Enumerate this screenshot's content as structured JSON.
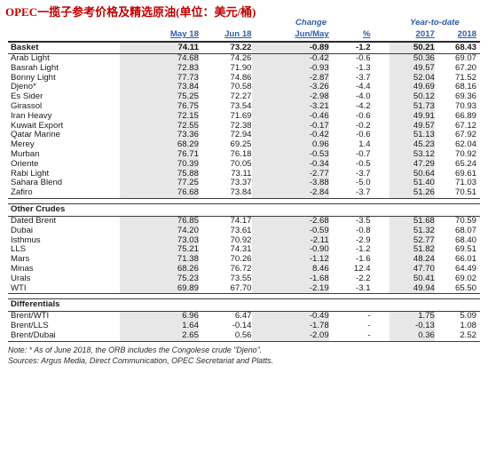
{
  "title": "OPEC一揽子参考价格及精选原油(单位：美元/桶)",
  "header": {
    "change": "Change",
    "ytd": "Year-to-date",
    "may18": "May 18",
    "jun18": "Jun 18",
    "junmay": "Jun/May",
    "pct": "%",
    "y2017": "2017",
    "y2018": "2018"
  },
  "basket": {
    "row": [
      "Basket",
      "74.11",
      "73.22",
      "-0.89",
      "-1.2",
      "50.21",
      "68.43"
    ],
    "rows": [
      [
        "Arab Light",
        "74.68",
        "74.26",
        "-0.42",
        "-0.6",
        "50.36",
        "69.07"
      ],
      [
        "Basrah Light",
        "72.83",
        "71.90",
        "-0.93",
        "-1.3",
        "49.57",
        "67.20"
      ],
      [
        "Bonny Light",
        "77.73",
        "74.86",
        "-2.87",
        "-3.7",
        "52.04",
        "71.52"
      ],
      [
        "Djeno*",
        "73.84",
        "70.58",
        "-3.26",
        "-4.4",
        "49.69",
        "68.16"
      ],
      [
        "Es Sider",
        "75.25",
        "72.27",
        "-2.98",
        "-4.0",
        "50.12",
        "69.36"
      ],
      [
        "Girassol",
        "76.75",
        "73.54",
        "-3.21",
        "-4.2",
        "51.73",
        "70.93"
      ],
      [
        "Iran Heavy",
        "72.15",
        "71.69",
        "-0.46",
        "-0.6",
        "49.91",
        "66.89"
      ],
      [
        "Kuwait Export",
        "72.55",
        "72.38",
        "-0.17",
        "-0.2",
        "49.57",
        "67.12"
      ],
      [
        "Qatar Marine",
        "73.36",
        "72.94",
        "-0.42",
        "-0.6",
        "51.13",
        "67.92"
      ],
      [
        "Merey",
        "68.29",
        "69.25",
        "0.96",
        "1.4",
        "45.23",
        "62.04"
      ],
      [
        "Murban",
        "76.71",
        "76.18",
        "-0.53",
        "-0.7",
        "53.12",
        "70.92"
      ],
      [
        "Oriente",
        "70.39",
        "70.05",
        "-0.34",
        "-0.5",
        "47.29",
        "65.24"
      ],
      [
        "Rabi Light",
        "75.88",
        "73.11",
        "-2.77",
        "-3.7",
        "50.64",
        "69.61"
      ],
      [
        "Sahara Blend",
        "77.25",
        "73.37",
        "-3.88",
        "-5.0",
        "51.40",
        "71.03"
      ],
      [
        "Zafiro",
        "76.68",
        "73.84",
        "-2.84",
        "-3.7",
        "51.26",
        "70.51"
      ]
    ]
  },
  "other": {
    "heading": "Other Crudes",
    "rows": [
      [
        "Dated Brent",
        "76.85",
        "74.17",
        "-2.68",
        "-3.5",
        "51.68",
        "70.59"
      ],
      [
        "Dubai",
        "74.20",
        "73.61",
        "-0.59",
        "-0.8",
        "51.32",
        "68.07"
      ],
      [
        "Isthmus",
        "73.03",
        "70.92",
        "-2.11",
        "-2.9",
        "52.77",
        "68.40"
      ],
      [
        "LLS",
        "75.21",
        "74.31",
        "-0.90",
        "-1.2",
        "51.82",
        "69.51"
      ],
      [
        "Mars",
        "71.38",
        "70.26",
        "-1.12",
        "-1.6",
        "48.24",
        "66.01"
      ],
      [
        "Minas",
        "68.26",
        "76.72",
        "8.46",
        "12.4",
        "47.70",
        "64.49"
      ],
      [
        "Urals",
        "75.23",
        "73.55",
        "-1.68",
        "-2.2",
        "50.41",
        "69.02"
      ],
      [
        "WTI",
        "69.89",
        "67.70",
        "-2.19",
        "-3.1",
        "49.94",
        "65.50"
      ]
    ]
  },
  "differentials": {
    "heading": "Differentials",
    "rows": [
      [
        "Brent/WTI",
        "6.96",
        "6.47",
        "-0.49",
        "-",
        "1.75",
        "5.09"
      ],
      [
        "Brent/LLS",
        "1.64",
        "-0.14",
        "-1.78",
        "-",
        "-0.13",
        "1.08"
      ],
      [
        "Brent/Dubai",
        "2.65",
        "0.56",
        "-2.09",
        "-",
        "0.36",
        "2.52"
      ]
    ]
  },
  "notes": {
    "note": "Note: * As of June 2018, the ORB includes the Congolese crude \"Djeno\".",
    "sources": "Sources: Argus Media, Direct Communication, OPEC Secretariat and Platts."
  }
}
